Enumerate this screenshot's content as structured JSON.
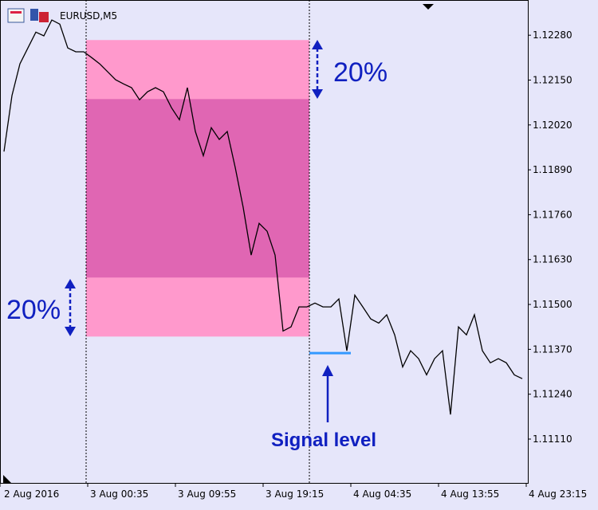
{
  "chart_data": {
    "type": "line",
    "title": "EURUSD,M5",
    "color": "#000000",
    "values": [
      1.11943,
      1.12105,
      1.12197,
      1.12243,
      1.12289,
      1.12278,
      1.12324,
      1.12312,
      1.12243,
      1.12232,
      1.12232,
      1.12215,
      1.12197,
      1.12174,
      1.12151,
      1.12139,
      1.12128,
      1.12093,
      1.12116,
      1.12128,
      1.12116,
      1.1207,
      1.12035,
      1.12128,
      1.12001,
      1.11931,
      1.12012,
      1.11978,
      1.12001,
      1.11897,
      1.11781,
      1.11643,
      1.11735,
      1.11712,
      1.11643,
      1.11423,
      1.11435,
      1.11493,
      1.11493,
      1.11504,
      1.11493,
      1.11493,
      1.11516,
      1.11366,
      1.11527,
      1.11493,
      1.11458,
      1.11446,
      1.1147,
      1.11412,
      1.11319,
      1.11366,
      1.11343,
      1.11296,
      1.11343,
      1.11366,
      1.11181,
      1.11435,
      1.11412,
      1.1147,
      1.11366,
      1.11331,
      1.11343,
      1.11331,
      1.11296,
      1.11285
    ],
    "x_tick_labels": [
      "2 Aug 2016",
      "3 Aug 00:35",
      "3 Aug 09:55",
      "3 Aug 19:15",
      "4 Aug 04:35",
      "4 Aug 13:55",
      "4 Aug 23:15"
    ],
    "ylim": [
      1.10983,
      1.12382
    ],
    "yticks": [
      {
        "value": 1.1228,
        "label": "1.12280"
      },
      {
        "value": 1.1215,
        "label": "1.12150"
      },
      {
        "value": 1.1202,
        "label": "1.12020"
      },
      {
        "value": 1.1189,
        "label": "1.11890"
      },
      {
        "value": 1.1176,
        "label": "1.11760"
      },
      {
        "value": 1.1163,
        "label": "1.11630"
      },
      {
        "value": 1.115,
        "label": "1.11500"
      },
      {
        "value": 1.1137,
        "label": "1.11370"
      },
      {
        "value": 1.1124,
        "label": "1.11240"
      },
      {
        "value": 1.1111,
        "label": "1.11110"
      }
    ],
    "range_box": {
      "high": 1.12266,
      "inner_high": 1.12095,
      "inner_low": 1.11578,
      "low": 1.11407,
      "outer_color": "#ff99cc",
      "inner_color": "#e066b3"
    },
    "signal_level": {
      "value": 1.11359,
      "color": "#3399ff"
    },
    "annotations": {
      "top_percent": "20%",
      "bottom_percent": "20%",
      "signal": "Signal level"
    }
  }
}
